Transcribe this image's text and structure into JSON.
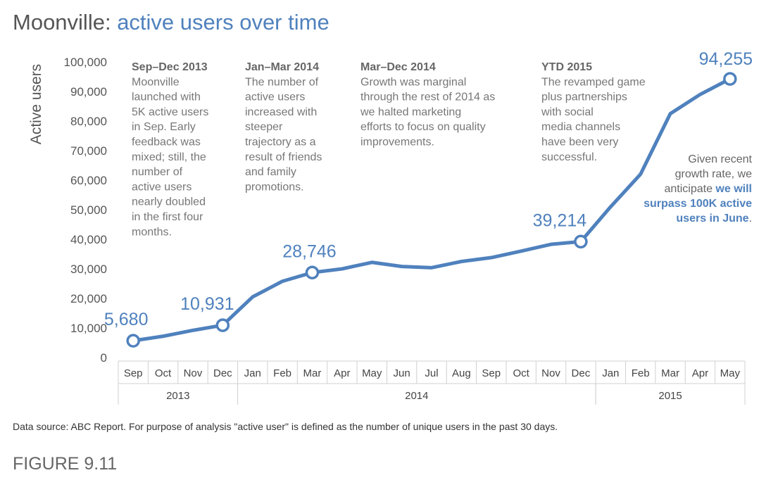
{
  "title_part1": "Moonville: ",
  "title_part2": "active users over time",
  "colors": {
    "accent": "#4f81bd",
    "text_gray": "#555555",
    "annotation": "#777777"
  },
  "chart_data": {
    "type": "line",
    "title": "Moonville: active users over time",
    "ylabel": "Active users",
    "xlabel": "",
    "ylim": [
      0,
      100000
    ],
    "yticks": [
      "0",
      "10,000",
      "20,000",
      "30,000",
      "40,000",
      "50,000",
      "60,000",
      "70,000",
      "80,000",
      "90,000",
      "100,000"
    ],
    "months": [
      "Sep",
      "Oct",
      "Nov",
      "Dec",
      "Jan",
      "Feb",
      "Mar",
      "Apr",
      "May",
      "Jun",
      "Jul",
      "Aug",
      "Sep",
      "Oct",
      "Nov",
      "Dec",
      "Jan",
      "Feb",
      "Mar",
      "Apr",
      "May"
    ],
    "years": [
      {
        "label": "2013",
        "start": 0,
        "end": 3
      },
      {
        "label": "2014",
        "start": 4,
        "end": 15
      },
      {
        "label": "2015",
        "start": 16,
        "end": 20
      }
    ],
    "values": [
      5680,
      7200,
      9200,
      10931,
      20500,
      25800,
      28746,
      30000,
      32200,
      30800,
      30400,
      32500,
      33800,
      36000,
      38300,
      39214,
      51000,
      62000,
      82500,
      89000,
      94255
    ],
    "highlighted": [
      {
        "index": 0,
        "label": "5,680"
      },
      {
        "index": 3,
        "label": "10,931"
      },
      {
        "index": 6,
        "label": "28,746"
      },
      {
        "index": 15,
        "label": "39,214"
      },
      {
        "index": 20,
        "label": "94,255"
      }
    ],
    "grid": false,
    "legend": "none"
  },
  "annotations": [
    {
      "heading": "Sep–Dec 2013",
      "lines": [
        "Moonville",
        "launched with",
        "5K active users",
        "in Sep. Early",
        "feedback was",
        "mixed; still, the",
        "number of",
        "active users",
        "nearly doubled",
        "in the first four",
        "months."
      ]
    },
    {
      "heading": "Jan–Mar 2014",
      "lines": [
        "The number of",
        "active users",
        "increased with",
        "steeper",
        "trajectory as a",
        "result of friends",
        "and family",
        "promotions."
      ]
    },
    {
      "heading": "Mar–Dec 2014",
      "lines": [
        "Growth was marginal",
        "through the rest of 2014 as",
        "we halted marketing",
        "efforts to focus on quality",
        "improvements."
      ]
    },
    {
      "heading": "YTD 2015",
      "lines": [
        "The revamped game",
        "plus partnerships",
        "with social",
        "media channels",
        "have been very",
        "successful."
      ]
    }
  ],
  "conclusion": {
    "line1": "Given recent",
    "line2": "growth rate, we",
    "line3_plain": "anticipate ",
    "line3_strong": "we will",
    "line4_strong": "surpass 100K active",
    "line5_strong": "users in June",
    "line5_plain": "."
  },
  "footnote": "Data source: ABC Report. For purpose of analysis \"active user\" is defined as the number of unique users in the past 30 days.",
  "figure_label": "FIGURE 9.11"
}
